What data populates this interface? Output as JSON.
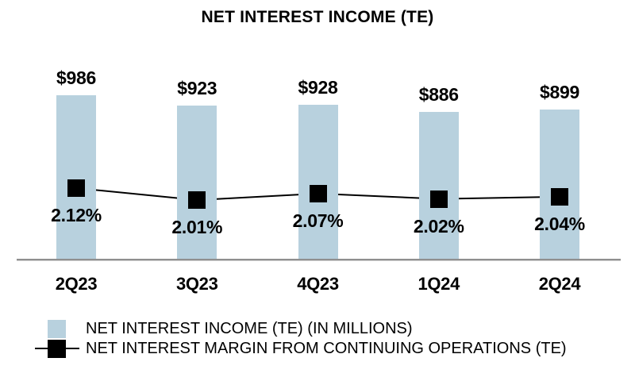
{
  "chart_data": {
    "type": "bar",
    "title": "NET INTEREST INCOME (TE)",
    "categories": [
      "2Q23",
      "3Q23",
      "4Q23",
      "1Q24",
      "2Q24"
    ],
    "series": [
      {
        "name": "NET INTEREST INCOME (TE) (IN MILLIONS)",
        "type": "bar",
        "values": [
          986,
          923,
          928,
          886,
          899
        ],
        "labels": [
          "$986",
          "$923",
          "$928",
          "$886",
          "$899"
        ],
        "color": "#b8d1de"
      },
      {
        "name": "NET INTEREST MARGIN FROM CONTINUING OPERATIONS (TE)",
        "type": "line",
        "marker": "square",
        "values": [
          2.12,
          2.01,
          2.07,
          2.02,
          2.04
        ],
        "labels": [
          "2.12%",
          "2.01%",
          "2.07%",
          "2.02%",
          "2.04%"
        ],
        "color": "#000000"
      }
    ],
    "ylim_bar": [
      0,
      1000
    ],
    "grid": false,
    "legend_position": "bottom",
    "axis_color": "#8f8f8f",
    "background_color": "#ffffff"
  }
}
